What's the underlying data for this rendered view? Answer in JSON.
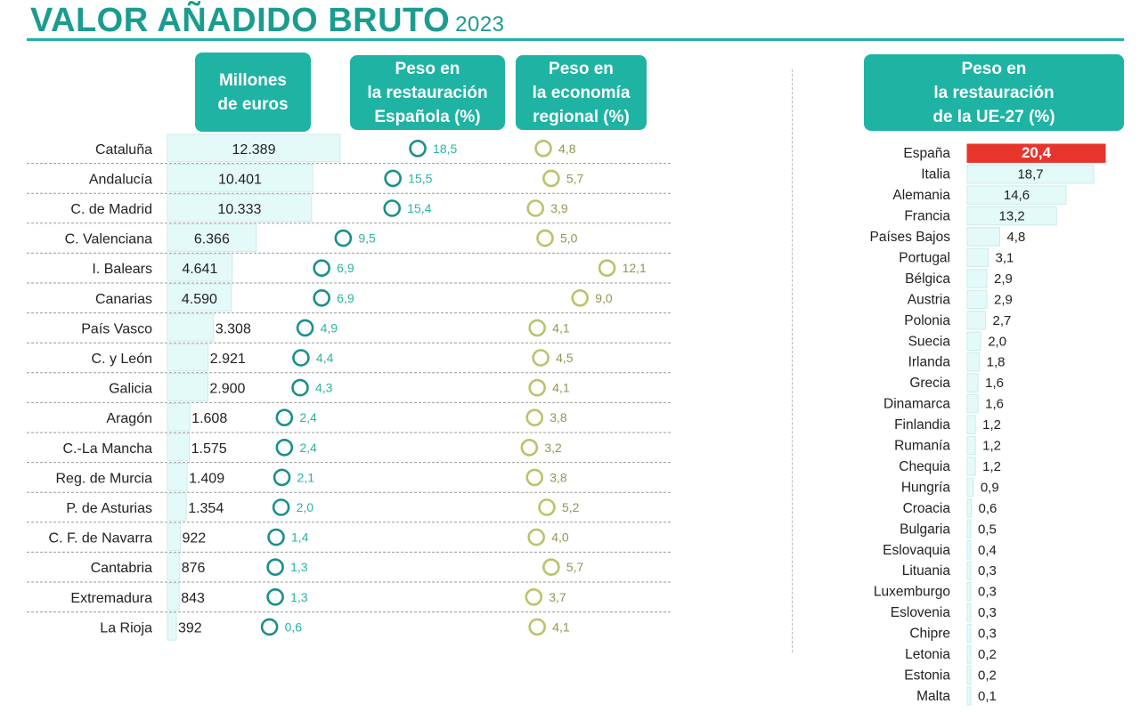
{
  "page": {
    "title": "VALOR AÑADIDO BRUTO",
    "year": "2023",
    "colors": {
      "teal": "#1fb3a4",
      "title": "#1a9c8e",
      "bar_fill": "#e4faf9",
      "bar_stroke": "#c8ece9",
      "circle_teal": "#1a8f8a",
      "circle_olive": "#b6c56a",
      "label_teal": "#2ab3a3",
      "label_olive": "#8c9a52",
      "highlight": "#e8352c"
    }
  },
  "headers": {
    "left_col1": "Millones\nde euros",
    "left_col2": "Peso en\nla restauración\nEspañola (%)",
    "left_col3": "Peso en\nla economía\nregional (%)",
    "right": "Peso en\nla restauración\nde la UE-27 (%)"
  },
  "chart_data": [
    {
      "type": "bar",
      "categories": [
        "Cataluña",
        "Andalucía",
        "C. de Madrid",
        "C. Valenciana",
        "I. Balears",
        "Canarias",
        "País Vasco",
        "C. y León",
        "Galicia",
        "Aragón",
        "C.-La Mancha",
        "Reg. de Murcia",
        "P. de Asturias",
        "C. F. de Navarra",
        "Cantabria",
        "Extremadura",
        "La Rioja"
      ],
      "series": [
        {
          "name": "Millones de euros",
          "values": [
            12389,
            10401,
            10333,
            6366,
            4641,
            4590,
            3308,
            2921,
            2900,
            1608,
            1575,
            1409,
            1354,
            922,
            876,
            843,
            392
          ],
          "labels": [
            "12.389",
            "10.401",
            "10.333",
            "6.366",
            "4.641",
            "4.590",
            "3.308",
            "2.921",
            "2.900",
            "1.608",
            "1.575",
            "1.409",
            "1.354",
            "922",
            "876",
            "843",
            "392"
          ]
        },
        {
          "name": "Peso en la restauración Española (%)",
          "values": [
            18.5,
            15.5,
            15.4,
            9.5,
            6.9,
            6.9,
            4.9,
            4.4,
            4.3,
            2.4,
            2.4,
            2.1,
            2.0,
            1.4,
            1.3,
            1.3,
            0.6
          ],
          "labels": [
            "18,5",
            "15,5",
            "15,4",
            "9,5",
            "6,9",
            "6,9",
            "4,9",
            "4,4",
            "4,3",
            "2,4",
            "2,4",
            "2,1",
            "2,0",
            "1,4",
            "1,3",
            "1,3",
            "0,6"
          ]
        },
        {
          "name": "Peso en la economía regional (%)",
          "values": [
            4.8,
            5.7,
            3.9,
            5.0,
            12.1,
            9.0,
            4.1,
            4.5,
            4.1,
            3.8,
            3.2,
            3.8,
            5.2,
            4.0,
            5.7,
            3.7,
            4.1
          ],
          "labels": [
            "4,8",
            "5,7",
            "3,9",
            "5,0",
            "12,1",
            "9,0",
            "4,1",
            "4,5",
            "4,1",
            "3,8",
            "3,2",
            "3,8",
            "5,2",
            "4,0",
            "5,7",
            "3,7",
            "4,1"
          ]
        }
      ]
    },
    {
      "type": "bar",
      "categories": [
        "España",
        "Italia",
        "Alemania",
        "Francia",
        "Países Bajos",
        "Portugal",
        "Bélgica",
        "Austria",
        "Polonia",
        "Suecia",
        "Irlanda",
        "Grecia",
        "Dinamarca",
        "Finlandia",
        "Rumanía",
        "Chequia",
        "Hungría",
        "Croacia",
        "Bulgaria",
        "Eslovaquia",
        "Lituania",
        "Luxemburgo",
        "Eslovenia",
        "Chipre",
        "Letonia",
        "Estonia",
        "Malta"
      ],
      "series": [
        {
          "name": "Peso en la restauración de la UE-27 (%)",
          "values": [
            20.4,
            18.7,
            14.6,
            13.2,
            4.8,
            3.1,
            2.9,
            2.9,
            2.7,
            2.0,
            1.8,
            1.6,
            1.6,
            1.2,
            1.2,
            1.2,
            0.9,
            0.6,
            0.5,
            0.4,
            0.3,
            0.3,
            0.3,
            0.3,
            0.2,
            0.2,
            0.1
          ],
          "labels": [
            "20,4",
            "18,7",
            "14,6",
            "13,2",
            "4,8",
            "3,1",
            "2,9",
            "2,9",
            "2,7",
            "2,0",
            "1,8",
            "1,6",
            "1,6",
            "1,2",
            "1,2",
            "1,2",
            "0,9",
            "0,6",
            "0,5",
            "0,4",
            "0,3",
            "0,3",
            "0,3",
            "0,3",
            "0,2",
            "0,2",
            "0,1"
          ]
        }
      ],
      "highlight": "España"
    }
  ]
}
